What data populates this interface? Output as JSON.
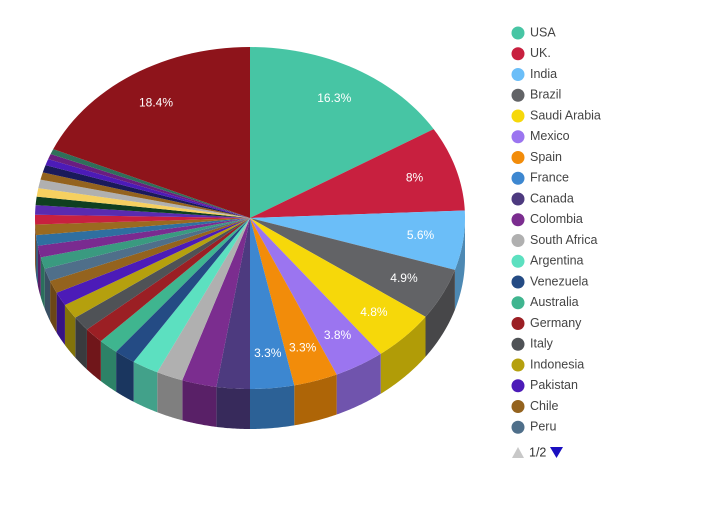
{
  "chart_data": {
    "type": "pie",
    "categories": [
      "USA",
      "UK.",
      "India",
      "Brazil",
      "Saudi Arabia",
      "Mexico",
      "Spain",
      "France",
      "Canada",
      "Colombia",
      "South Africa",
      "Argentina",
      "Venezuela",
      "Australia",
      "Germany",
      "Italy",
      "Indonesia",
      "Pakistan",
      "Chile",
      "Peru",
      null,
      null,
      null,
      null,
      null,
      null,
      null,
      null,
      null,
      null,
      null,
      null,
      null,
      null,
      null
    ],
    "values": [
      16.3,
      8,
      5.6,
      4.9,
      4.8,
      3.8,
      3.3,
      3.3,
      2.5,
      2.6,
      2,
      2,
      1.6,
      1.5,
      1.5,
      1.4,
      1.4,
      1.3,
      1.2,
      1.2,
      1.1,
      1.1,
      1.0,
      1.0,
      0.9,
      0.9,
      0.8,
      0.8,
      0.8,
      0.7,
      0.7,
      0.6,
      0.5,
      0.5,
      18.4
    ],
    "value_labels": [
      "16.3%",
      "8%",
      "5.6%",
      "4.9%",
      "4.8%",
      "3.8%",
      "3.3%",
      "3.3%",
      null,
      null,
      null,
      null,
      null,
      null,
      null,
      null,
      null,
      null,
      null,
      null,
      null,
      null,
      null,
      null,
      null,
      null,
      null,
      null,
      null,
      null,
      null,
      null,
      null,
      null,
      "18.4%"
    ],
    "colors": [
      "#47c5a4",
      "#c8203f",
      "#6bbef8",
      "#626366",
      "#f6d80a",
      "#9b75f0",
      "#f28c0a",
      "#3d87d0",
      "#4d3a7f",
      "#7b2d8f",
      "#b0b0b0",
      "#5ce0c0",
      "#244b84",
      "#3fb58f",
      "#9b1f24",
      "#4f5256",
      "#b5a00e",
      "#4c1bb8",
      "#94631e",
      "#4f6f8a",
      "#3a9a80",
      "#7a2b90",
      "#2f6fa0",
      "#9a6a20",
      "#c8203f",
      "#5a2bb0",
      "#0f3f20",
      "#f6d060",
      "#b0b0b0",
      "#94631e",
      "#1a1a5a",
      "#4c1bb8",
      "#6a1d80",
      "#2f6f5a",
      "#8e141b"
    ],
    "legend_pager": "1/2"
  }
}
